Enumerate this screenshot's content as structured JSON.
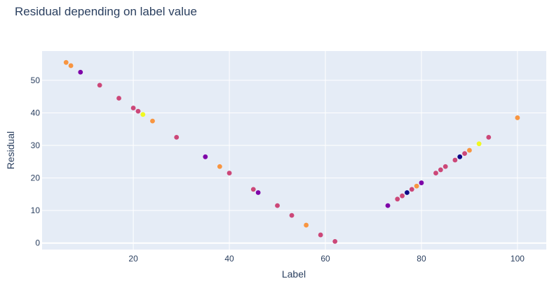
{
  "chart_data": {
    "type": "scatter",
    "title": "Residual depending on label value",
    "xlabel": "Label",
    "ylabel": "Residual",
    "xlim": [
      1,
      106
    ],
    "ylim": [
      -2,
      59
    ],
    "xticks": [
      20,
      40,
      60,
      80,
      100
    ],
    "yticks": [
      0,
      10,
      20,
      30,
      40,
      50
    ],
    "grid": true,
    "colors": {
      "background": "#e5ecf6",
      "grid": "#ffffff",
      "text": "#2a3f5f",
      "navy": "#0d0887",
      "purple": "#7e03a8",
      "magenta": "#cc4778",
      "orange": "#f89540",
      "yellow": "#f0f921"
    },
    "points": [
      {
        "x": 6,
        "y": 55.5,
        "c": "orange"
      },
      {
        "x": 7,
        "y": 54.5,
        "c": "orange"
      },
      {
        "x": 9,
        "y": 52.5,
        "c": "purple"
      },
      {
        "x": 13,
        "y": 48.5,
        "c": "magenta"
      },
      {
        "x": 17,
        "y": 44.5,
        "c": "magenta"
      },
      {
        "x": 20,
        "y": 41.5,
        "c": "magenta"
      },
      {
        "x": 21,
        "y": 40.5,
        "c": "magenta"
      },
      {
        "x": 22,
        "y": 39.5,
        "c": "yellow"
      },
      {
        "x": 24,
        "y": 37.5,
        "c": "orange"
      },
      {
        "x": 29,
        "y": 32.5,
        "c": "magenta"
      },
      {
        "x": 35,
        "y": 26.5,
        "c": "purple"
      },
      {
        "x": 38,
        "y": 23.5,
        "c": "orange"
      },
      {
        "x": 40,
        "y": 21.5,
        "c": "magenta"
      },
      {
        "x": 45,
        "y": 16.5,
        "c": "magenta"
      },
      {
        "x": 46,
        "y": 15.5,
        "c": "purple"
      },
      {
        "x": 50,
        "y": 11.5,
        "c": "magenta"
      },
      {
        "x": 53,
        "y": 8.5,
        "c": "magenta"
      },
      {
        "x": 56,
        "y": 5.5,
        "c": "orange"
      },
      {
        "x": 59,
        "y": 2.5,
        "c": "magenta"
      },
      {
        "x": 62,
        "y": 0.5,
        "c": "magenta"
      },
      {
        "x": 73,
        "y": 11.5,
        "c": "purple"
      },
      {
        "x": 75,
        "y": 13.5,
        "c": "magenta"
      },
      {
        "x": 76,
        "y": 14.5,
        "c": "magenta"
      },
      {
        "x": 77,
        "y": 15.5,
        "c": "navy"
      },
      {
        "x": 78,
        "y": 16.5,
        "c": "magenta"
      },
      {
        "x": 79,
        "y": 17.5,
        "c": "orange"
      },
      {
        "x": 80,
        "y": 18.5,
        "c": "purple"
      },
      {
        "x": 83,
        "y": 21.5,
        "c": "magenta"
      },
      {
        "x": 84,
        "y": 22.5,
        "c": "magenta"
      },
      {
        "x": 85,
        "y": 23.5,
        "c": "magenta"
      },
      {
        "x": 87,
        "y": 25.5,
        "c": "magenta"
      },
      {
        "x": 88,
        "y": 26.5,
        "c": "navy"
      },
      {
        "x": 89,
        "y": 27.5,
        "c": "magenta"
      },
      {
        "x": 90,
        "y": 28.5,
        "c": "orange"
      },
      {
        "x": 92,
        "y": 30.5,
        "c": "yellow"
      },
      {
        "x": 94,
        "y": 32.5,
        "c": "magenta"
      },
      {
        "x": 100,
        "y": 38.5,
        "c": "orange"
      }
    ]
  }
}
